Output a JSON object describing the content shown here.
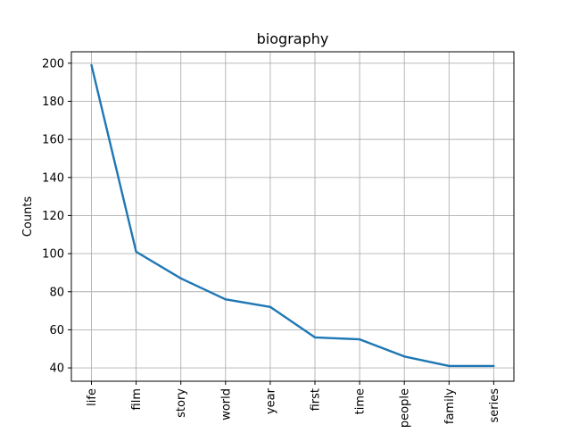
{
  "chart_data": {
    "type": "line",
    "title": "biography",
    "xlabel": "",
    "ylabel": "Counts",
    "categories": [
      "life",
      "film",
      "story",
      "world",
      "year",
      "first",
      "time",
      "people",
      "family",
      "series"
    ],
    "series": [
      {
        "values": [
          199,
          101,
          87,
          76,
          72,
          56,
          55,
          46,
          41,
          41
        ]
      }
    ],
    "ylim": [
      33,
      206
    ],
    "yticks": [
      40,
      60,
      80,
      100,
      120,
      140,
      160,
      180,
      200
    ],
    "grid": true,
    "line_color": "#1f77b4",
    "grid_color": "#b0b0b0"
  }
}
